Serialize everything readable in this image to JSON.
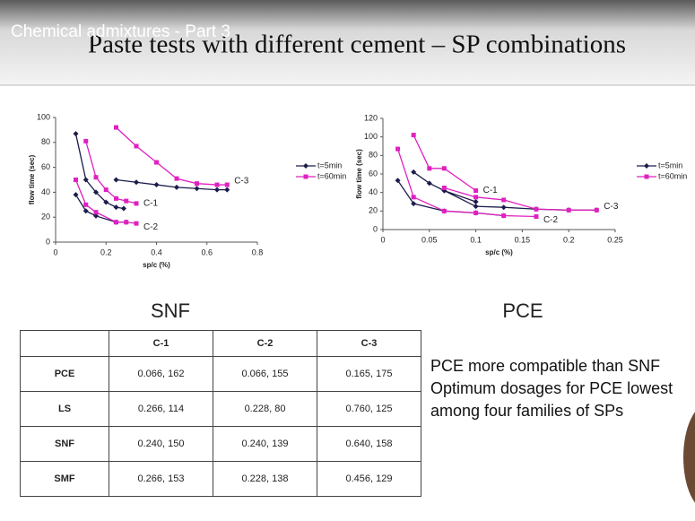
{
  "header": {
    "overlay": "Chemical admixtures - Part 3",
    "title": "Paste tests with different cement – SP combinations"
  },
  "chart_data": [
    {
      "type": "line",
      "xlabel": "sp/c (%)",
      "ylabel": "flow time (sec)",
      "caption": "SNF",
      "xlim": [
        0,
        0.8
      ],
      "xticks": [
        0,
        0.2,
        0.4,
        0.6,
        0.8
      ],
      "ylim": [
        0,
        100
      ],
      "yticks": [
        0,
        20,
        40,
        60,
        80,
        100
      ],
      "grid": false,
      "legend": "right",
      "annotations": [
        "C-1",
        "C-2",
        "C-3"
      ],
      "series": [
        {
          "name": "t=5min",
          "color": "#1c1c4c",
          "marker": "diamond",
          "x": [
            0.08,
            0.12,
            0.16,
            0.2,
            0.24,
            0.27,
            null,
            0.08,
            0.12,
            0.16,
            0.24,
            0.28,
            null,
            0.24,
            0.32,
            0.4,
            0.48,
            0.56,
            0.64,
            0.68
          ],
          "values": [
            87,
            50,
            40,
            32,
            28,
            27,
            null,
            38,
            25,
            21,
            16,
            16,
            null,
            50,
            48,
            46,
            44,
            43,
            42,
            42
          ]
        },
        {
          "name": "t=60min",
          "color": "#e020c0",
          "marker": "square",
          "x": [
            0.12,
            0.16,
            0.2,
            0.24,
            0.28,
            0.32,
            null,
            0.08,
            0.12,
            0.16,
            0.24,
            0.28,
            0.32,
            null,
            0.24,
            0.32,
            0.4,
            0.48,
            0.56,
            0.64,
            0.68
          ],
          "values": [
            81,
            52,
            42,
            35,
            33,
            31,
            null,
            50,
            30,
            24,
            16,
            16,
            15,
            null,
            92,
            77,
            64,
            51,
            47,
            46,
            46
          ]
        }
      ]
    },
    {
      "type": "line",
      "xlabel": "sp/c (%)",
      "ylabel": "flow time (sec)",
      "caption": "PCE",
      "xlim": [
        0,
        0.25
      ],
      "xticks": [
        0,
        0.05,
        0.1,
        0.15,
        0.2,
        0.25
      ],
      "ylim": [
        0,
        120
      ],
      "yticks": [
        0,
        20,
        40,
        60,
        80,
        100,
        120
      ],
      "grid": false,
      "legend": "right",
      "annotations": [
        "C-1",
        "C-2",
        "C-3"
      ],
      "series": [
        {
          "name": "t=5min",
          "color": "#1c1c4c",
          "marker": "diamond",
          "x": [
            0.033,
            0.05,
            0.066,
            0.1,
            null,
            0.016,
            0.033,
            0.066,
            0.1,
            0.13,
            null,
            0.066,
            0.1,
            0.13,
            0.165,
            0.2,
            0.23
          ],
          "values": [
            62,
            50,
            42,
            30,
            null,
            53,
            28,
            20,
            18,
            15,
            null,
            42,
            25,
            24,
            22,
            21,
            21
          ]
        },
        {
          "name": "t=60min",
          "color": "#e020c0",
          "marker": "square",
          "x": [
            0.033,
            0.05,
            0.066,
            0.1,
            null,
            0.016,
            0.033,
            0.066,
            0.1,
            0.13,
            0.165,
            null,
            0.066,
            0.1,
            0.13,
            0.165,
            0.2,
            0.23
          ],
          "values": [
            102,
            66,
            66,
            42,
            null,
            87,
            35,
            20,
            18,
            15,
            14,
            null,
            45,
            35,
            32,
            22,
            21,
            21
          ]
        }
      ]
    }
  ],
  "table": {
    "header": [
      "C-1",
      "C-2",
      "C-3"
    ],
    "rows": [
      {
        "label": "PCE",
        "cells": [
          "0.066, 162",
          "0.066, 155",
          "0.165, 175"
        ]
      },
      {
        "label": "LS",
        "cells": [
          "0.266, 114",
          "0.228, 80",
          "0.760, 125"
        ]
      },
      {
        "label": "SNF",
        "cells": [
          "0.240, 150",
          "0.240, 139",
          "0.640, 158"
        ]
      },
      {
        "label": "SMF",
        "cells": [
          "0.266, 153",
          "0.228, 138",
          "0.456, 129"
        ]
      }
    ]
  },
  "notes": [
    "PCE more compatible than SNF",
    "Optimum dosages for PCE lowest among four families of SPs"
  ]
}
